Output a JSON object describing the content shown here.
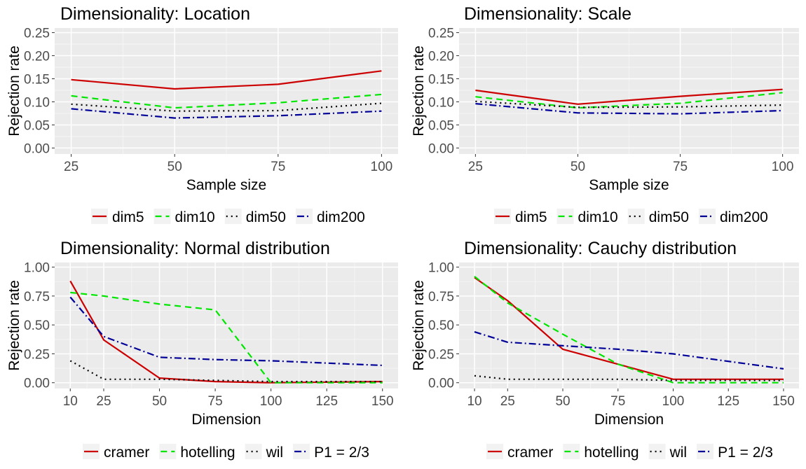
{
  "chart_data": [
    {
      "type": "line",
      "title": "Dimensionality: Location",
      "xlabel": "Sample size",
      "ylabel": "Rejection rate",
      "x": [
        25,
        50,
        75,
        100
      ],
      "xticks": [
        25,
        50,
        75,
        100
      ],
      "xlim": [
        21,
        104
      ],
      "yticks": [
        0,
        0.05,
        0.1,
        0.15,
        0.2,
        0.25
      ],
      "ytick_labels": [
        "0.00",
        "0.05",
        "0.10",
        "0.15",
        "0.20",
        "0.25"
      ],
      "ylim": [
        -0.013,
        0.26
      ],
      "legend_position": "bottom",
      "series": [
        {
          "name": "dim5",
          "color": "#cc0000",
          "dash": "solid",
          "values": [
            0.148,
            0.128,
            0.138,
            0.167
          ]
        },
        {
          "name": "dim10",
          "color": "#00e600",
          "dash": "dashed",
          "values": [
            0.113,
            0.087,
            0.098,
            0.116
          ]
        },
        {
          "name": "dim50",
          "color": "#000000",
          "dash": "dotted",
          "values": [
            0.095,
            0.08,
            0.081,
            0.097
          ]
        },
        {
          "name": "dim200",
          "color": "#000099",
          "dash": "dotdash",
          "values": [
            0.085,
            0.065,
            0.07,
            0.08
          ]
        }
      ]
    },
    {
      "type": "line",
      "title": "Dimensionality: Scale",
      "xlabel": "Sample size",
      "ylabel": "Rejection rate",
      "x": [
        25,
        50,
        75,
        100
      ],
      "xticks": [
        25,
        50,
        75,
        100
      ],
      "xlim": [
        21,
        104
      ],
      "yticks": [
        0,
        0.05,
        0.1,
        0.15,
        0.2,
        0.25
      ],
      "ytick_labels": [
        "0.00",
        "0.05",
        "0.10",
        "0.15",
        "0.20",
        "0.25"
      ],
      "ylim": [
        -0.013,
        0.26
      ],
      "legend_position": "bottom",
      "series": [
        {
          "name": "dim5",
          "color": "#cc0000",
          "dash": "solid",
          "values": [
            0.125,
            0.095,
            0.112,
            0.127
          ]
        },
        {
          "name": "dim10",
          "color": "#00e600",
          "dash": "dashed",
          "values": [
            0.111,
            0.087,
            0.097,
            0.12
          ]
        },
        {
          "name": "dim50",
          "color": "#000000",
          "dash": "dotted",
          "values": [
            0.101,
            0.088,
            0.089,
            0.093
          ]
        },
        {
          "name": "dim200",
          "color": "#000099",
          "dash": "dotdash",
          "values": [
            0.096,
            0.076,
            0.074,
            0.081
          ]
        }
      ]
    },
    {
      "type": "line",
      "title": "Dimensionality: Normal distribution",
      "xlabel": "Dimension",
      "ylabel": "Rejection rate",
      "x": [
        10,
        25,
        50,
        75,
        100,
        150
      ],
      "xticks": [
        10,
        25,
        50,
        75,
        100,
        125,
        150
      ],
      "xlim": [
        3,
        157
      ],
      "yticks": [
        0,
        0.25,
        0.5,
        0.75,
        1.0
      ],
      "ytick_labels": [
        "0.00",
        "0.25",
        "0.50",
        "0.75",
        "1.00"
      ],
      "ylim": [
        -0.05,
        1.04
      ],
      "legend_position": "bottom",
      "series": [
        {
          "name": "cramer",
          "color": "#cc0000",
          "dash": "solid",
          "values": [
            0.88,
            0.37,
            0.04,
            0.01,
            0.0,
            0.01
          ]
        },
        {
          "name": "hotelling",
          "color": "#00e600",
          "dash": "dashed",
          "values": [
            0.78,
            0.75,
            0.68,
            0.63,
            0.0,
            0.0
          ]
        },
        {
          "name": "wil",
          "color": "#000000",
          "dash": "dotted",
          "values": [
            0.19,
            0.03,
            0.03,
            0.02,
            0.01,
            0.01
          ]
        },
        {
          "name": "P1 = 2/3",
          "color": "#000099",
          "dash": "dotdash",
          "values": [
            0.74,
            0.4,
            0.22,
            0.2,
            0.19,
            0.15
          ]
        }
      ]
    },
    {
      "type": "line",
      "title": "Dimensionality: Cauchy distribution",
      "xlabel": "Dimension",
      "ylabel": "Rejection rate",
      "x": [
        10,
        25,
        50,
        75,
        100,
        150
      ],
      "xticks": [
        10,
        25,
        50,
        75,
        100,
        125,
        150
      ],
      "xlim": [
        3,
        157
      ],
      "yticks": [
        0,
        0.25,
        0.5,
        0.75,
        1.0
      ],
      "ytick_labels": [
        "0.00",
        "0.25",
        "0.50",
        "0.75",
        "1.00"
      ],
      "ylim": [
        -0.05,
        1.04
      ],
      "legend_position": "bottom",
      "series": [
        {
          "name": "cramer",
          "color": "#cc0000",
          "dash": "solid",
          "values": [
            0.91,
            0.71,
            0.29,
            0.16,
            0.03,
            0.03
          ]
        },
        {
          "name": "hotelling",
          "color": "#00e600",
          "dash": "dashed",
          "values": [
            0.92,
            0.69,
            0.42,
            0.16,
            0.0,
            0.0
          ]
        },
        {
          "name": "wil",
          "color": "#000000",
          "dash": "dotted",
          "values": [
            0.06,
            0.03,
            0.03,
            0.03,
            0.02,
            0.02
          ]
        },
        {
          "name": "P1 = 2/3",
          "color": "#000099",
          "dash": "dotdash",
          "values": [
            0.44,
            0.35,
            0.32,
            0.29,
            0.25,
            0.12
          ]
        }
      ]
    }
  ]
}
